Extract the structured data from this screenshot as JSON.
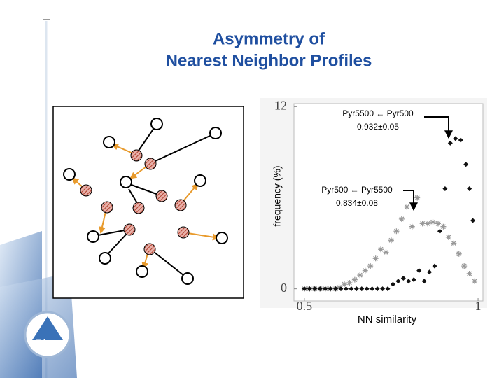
{
  "logo": "Tripos",
  "chart_data": {
    "type": "scatter",
    "title": [
      "Asymmetry of",
      "Nearest Neighbor Profiles"
    ],
    "xlabel": "NN similarity",
    "ylabel": "frequency (%)",
    "xlim": [
      0.47,
      1.014
    ],
    "ylim": [
      -0.8,
      12.2
    ],
    "xticks": [
      0.5,
      1
    ],
    "yticks": [
      0,
      12
    ],
    "annotations": [
      [
        "Pyr5500 ← Pyr500",
        "0.932±0.05"
      ],
      [
        "Pyr500 ← Pyr5500",
        "0.834±0.08"
      ]
    ],
    "series": [
      {
        "color": "#999999",
        "marker": "plus",
        "x": [
          0.5,
          0.515,
          0.53,
          0.545,
          0.56,
          0.575,
          0.59,
          0.6,
          0.615,
          0.63,
          0.645,
          0.66,
          0.675,
          0.69,
          0.705,
          0.72,
          0.735,
          0.75,
          0.765,
          0.78,
          0.795,
          0.81,
          0.825,
          0.84,
          0.855,
          0.87,
          0.885,
          0.9,
          0.915,
          0.93,
          0.945,
          0.96,
          0.975,
          0.99
        ],
        "values": [
          0,
          0,
          0,
          0,
          0,
          0,
          0,
          0.1,
          0.3,
          0.4,
          0.6,
          0.9,
          1.2,
          1.5,
          2.0,
          2.6,
          2.4,
          3.2,
          3.8,
          4.6,
          5.4,
          4.1,
          6.0,
          4.3,
          4.3,
          4.4,
          4.3,
          4.1,
          3.4,
          3.0,
          2.3,
          1.5,
          1.0,
          0.5
        ]
      },
      {
        "color": "#111111",
        "marker": "diamond",
        "x": [
          0.5,
          0.515,
          0.53,
          0.545,
          0.56,
          0.575,
          0.59,
          0.605,
          0.62,
          0.635,
          0.65,
          0.665,
          0.68,
          0.695,
          0.71,
          0.725,
          0.74,
          0.755,
          0.77,
          0.785,
          0.8,
          0.815,
          0.83,
          0.845,
          0.86,
          0.875,
          0.89,
          0.905,
          0.92,
          0.935,
          0.95,
          0.965,
          0.975,
          0.985
        ],
        "values": [
          0,
          0,
          0,
          0,
          0,
          0,
          0,
          0,
          0,
          0,
          0,
          0,
          0,
          0,
          0,
          0,
          0,
          0.3,
          0.5,
          0.7,
          0.5,
          0.6,
          1.2,
          0.5,
          1.1,
          1.5,
          3.8,
          6.6,
          9.6,
          9.9,
          9.8,
          8.2,
          6.6,
          4.5
        ]
      }
    ]
  }
}
